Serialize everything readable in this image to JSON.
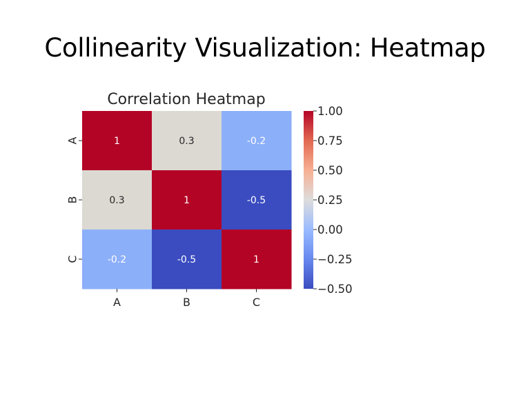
{
  "slide": {
    "title": "Collinearity Visualization: Heatmap"
  },
  "chart_data": {
    "type": "heatmap",
    "title": "Correlation Heatmap",
    "x_categories": [
      "A",
      "B",
      "C"
    ],
    "y_categories": [
      "A",
      "B",
      "C"
    ],
    "values": [
      [
        1,
        0.3,
        -0.2
      ],
      [
        0.3,
        1,
        -0.5
      ],
      [
        -0.2,
        -0.5,
        1
      ]
    ],
    "annotations": [
      [
        "1",
        "0.3",
        "-0.2"
      ],
      [
        "0.3",
        "1",
        "-0.5"
      ],
      [
        "-0.2",
        "-0.5",
        "1"
      ]
    ],
    "colormap": "coolwarm",
    "vmin": -0.5,
    "vmax": 1.0,
    "colorbar_ticks": [
      1.0,
      0.75,
      0.5,
      0.25,
      0.0,
      -0.25,
      -0.5
    ],
    "colorbar_tick_labels": [
      "1.00",
      "0.75",
      "0.50",
      "0.25",
      "0.00",
      "−0.25",
      "−0.50"
    ],
    "colors": {
      "1": "#b40426",
      "0.3": "#dcd9d3",
      "-0.2": "#8caff9",
      "-0.5": "#3b4cc0"
    }
  }
}
